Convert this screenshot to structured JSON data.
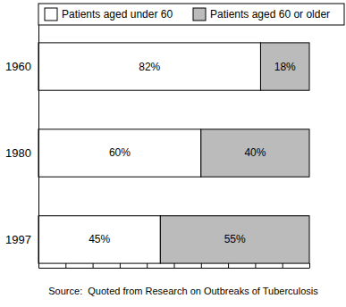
{
  "chart_data": {
    "type": "bar",
    "orientation": "horizontal",
    "stacked": true,
    "categories": [
      "1960",
      "1980",
      "1997"
    ],
    "series": [
      {
        "name": "Patients aged under 60",
        "color": "#ffffff",
        "values": [
          82,
          60,
          45
        ],
        "value_labels": [
          "82%",
          "60%",
          "45%"
        ]
      },
      {
        "name": "Patients aged 60 or older",
        "color": "#bbbbbb",
        "values": [
          18,
          40,
          55
        ],
        "value_labels": [
          "18%",
          "40%",
          "55%"
        ]
      }
    ],
    "xlim": [
      0,
      100
    ],
    "xticks": [
      0,
      10,
      20,
      30,
      40,
      50,
      60,
      70,
      80,
      90,
      100
    ],
    "tick_labels": "y",
    "data_labels": true,
    "legend": "top",
    "annotations": [
      "Source:  Quoted from Research on Outbreaks of Tuberculosis"
    ]
  }
}
